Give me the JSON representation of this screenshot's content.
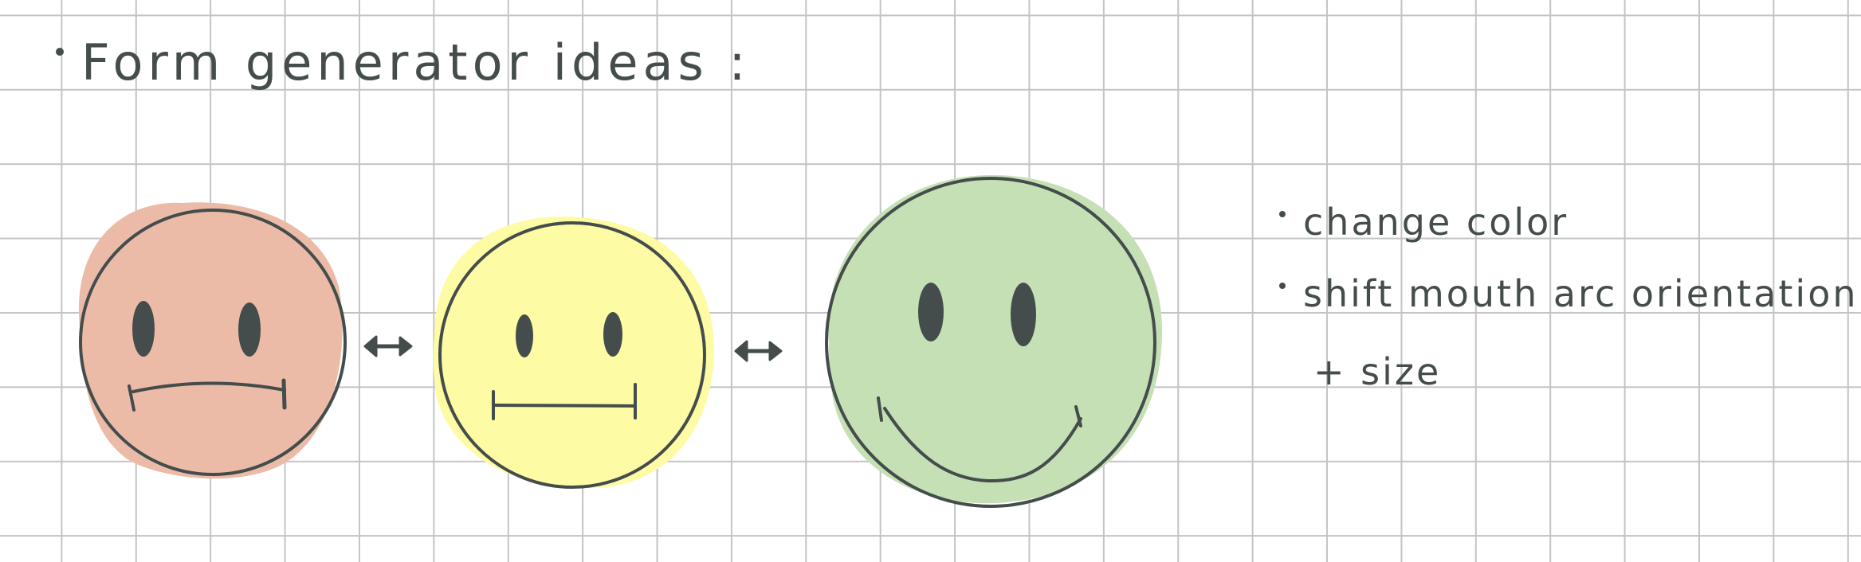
{
  "title": "Form generator ideas :",
  "notes": {
    "change_color": "change color",
    "shift_mouth": "shift mouth arc orientation",
    "plus_size": "+ size"
  },
  "faces": [
    {
      "mood": "sad",
      "fill": "#ebbba8"
    },
    {
      "mood": "neutral",
      "fill": "#fdfba3"
    },
    {
      "mood": "happy",
      "fill": "#c4e0b4"
    }
  ],
  "colors": {
    "ink": "#444c4c",
    "grid": "#c4c4c4",
    "background": "#ffffff"
  },
  "icons": [
    "double-arrow-icon",
    "double-arrow-icon"
  ]
}
